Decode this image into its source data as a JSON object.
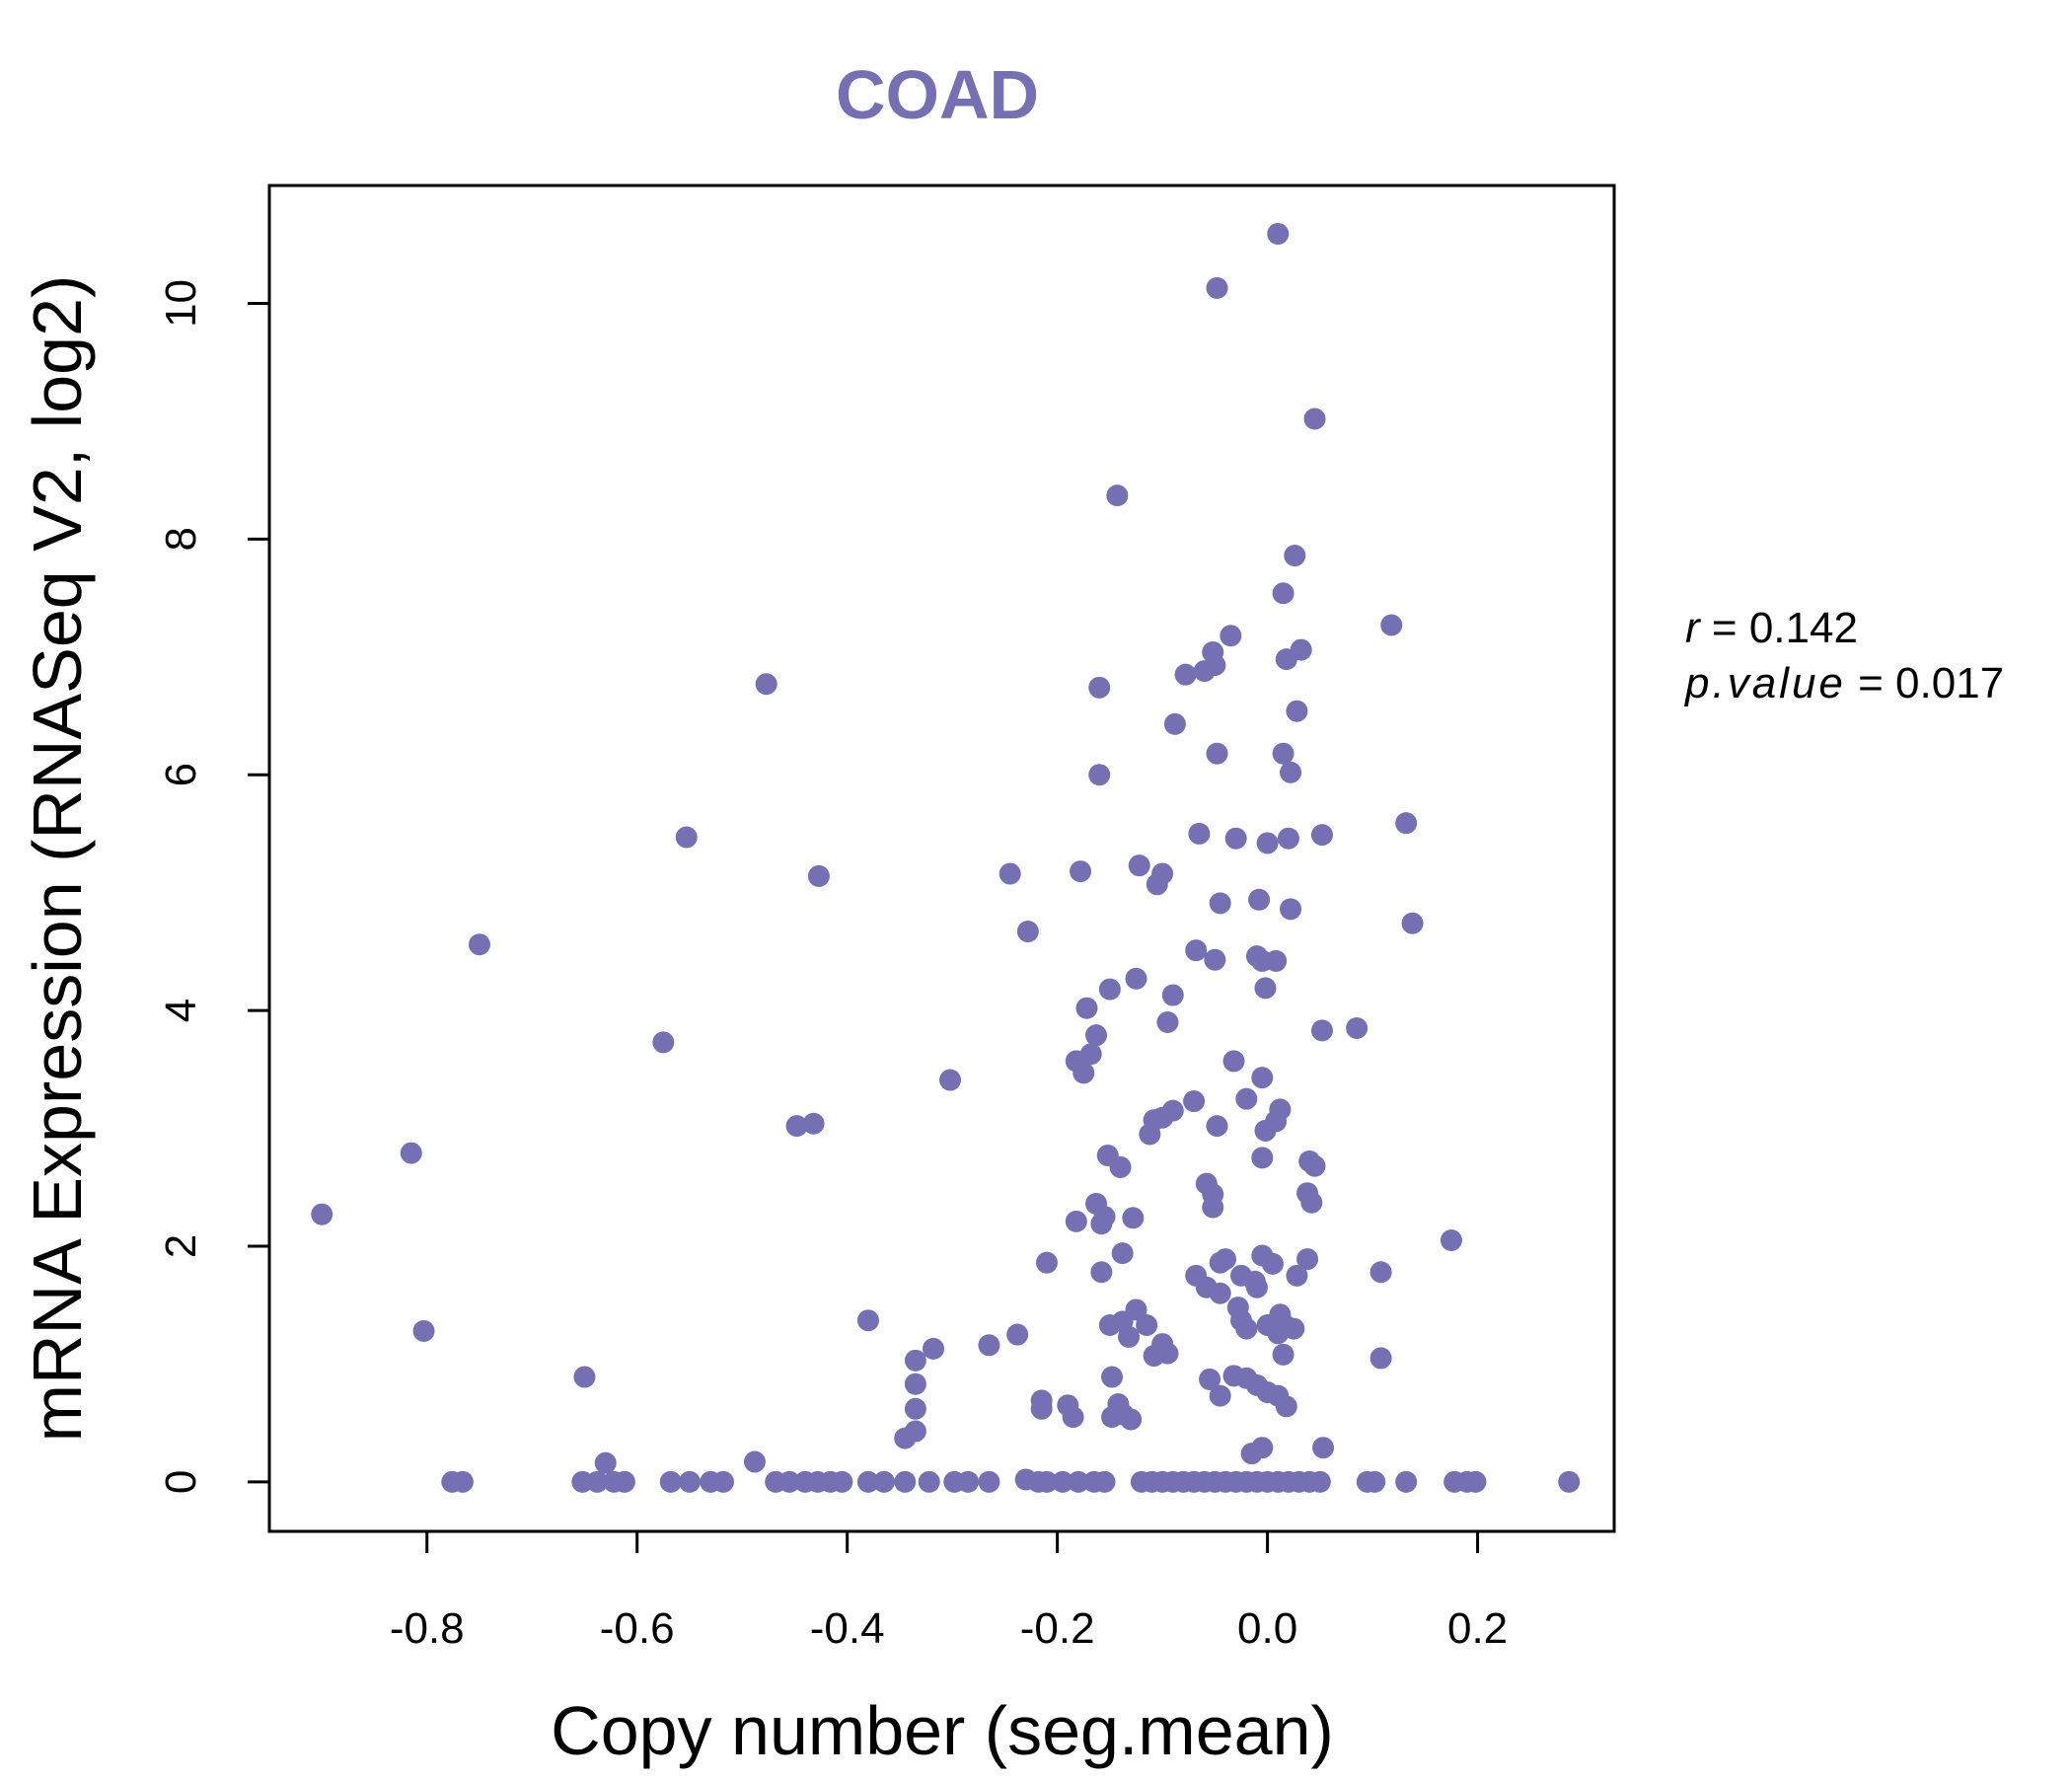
{
  "chart_data": {
    "type": "scatter",
    "title": "COAD",
    "xlabel": "Copy number (seg.mean)",
    "ylabel": "mRNA Expression (RNASeq V2, log2)",
    "xlim": [
      -0.95,
      0.33
    ],
    "ylim": [
      -0.42,
      11.0
    ],
    "x_ticks": [
      -0.8,
      -0.6,
      -0.4,
      -0.2,
      0.0,
      0.2
    ],
    "x_tick_labels": [
      "-0.8",
      "-0.6",
      "-0.4",
      "-0.2",
      "0.0",
      "0.2"
    ],
    "y_ticks": [
      0,
      2,
      4,
      6,
      8,
      10
    ],
    "y_tick_labels": [
      "0",
      "2",
      "4",
      "6",
      "8",
      "10"
    ],
    "grid": false,
    "point_color": "#7570b3",
    "annotation": {
      "r_label": "r",
      "r_value": "0.142",
      "p_label": "p.value",
      "p_value": "0.017"
    },
    "points": [
      [
        -0.9,
        2.27
      ],
      [
        -0.815,
        2.79
      ],
      [
        -0.803,
        1.28
      ],
      [
        -0.75,
        4.56
      ],
      [
        -0.776,
        0.0
      ],
      [
        -0.766,
        0.0
      ],
      [
        -0.65,
        0.89
      ],
      [
        -0.63,
        0.16
      ],
      [
        -0.652,
        0.0
      ],
      [
        -0.638,
        0.0
      ],
      [
        -0.622,
        0.0
      ],
      [
        -0.612,
        0.0
      ],
      [
        -0.575,
        3.73
      ],
      [
        -0.553,
        5.47
      ],
      [
        -0.568,
        0.0
      ],
      [
        -0.55,
        0.0
      ],
      [
        -0.53,
        0.0
      ],
      [
        -0.518,
        0.0
      ],
      [
        -0.477,
        6.77
      ],
      [
        -0.488,
        0.17
      ],
      [
        -0.468,
        0.0
      ],
      [
        -0.455,
        0.0
      ],
      [
        -0.44,
        0.0
      ],
      [
        -0.428,
        0.0
      ],
      [
        -0.416,
        0.0
      ],
      [
        -0.405,
        0.0
      ],
      [
        -0.448,
        3.02
      ],
      [
        -0.432,
        3.04
      ],
      [
        -0.427,
        5.14
      ],
      [
        -0.38,
        1.37
      ],
      [
        -0.38,
        0.0
      ],
      [
        -0.365,
        0.0
      ],
      [
        -0.345,
        0.0
      ],
      [
        -0.322,
        0.0
      ],
      [
        -0.298,
        0.0
      ],
      [
        -0.285,
        0.0
      ],
      [
        -0.265,
        0.0
      ],
      [
        -0.345,
        0.37
      ],
      [
        -0.335,
        0.43
      ],
      [
        -0.335,
        0.62
      ],
      [
        -0.335,
        0.83
      ],
      [
        -0.335,
        1.03
      ],
      [
        -0.318,
        1.13
      ],
      [
        -0.302,
        3.41
      ],
      [
        -0.265,
        1.16
      ],
      [
        -0.245,
        5.16
      ],
      [
        -0.238,
        1.25
      ],
      [
        -0.228,
        4.67
      ],
      [
        -0.23,
        0.02
      ],
      [
        -0.218,
        0.0
      ],
      [
        -0.21,
        0.0
      ],
      [
        -0.195,
        0.0
      ],
      [
        -0.18,
        0.0
      ],
      [
        -0.165,
        0.0
      ],
      [
        -0.155,
        0.0
      ],
      [
        -0.21,
        1.86
      ],
      [
        -0.215,
        0.62
      ],
      [
        -0.215,
        0.69
      ],
      [
        -0.19,
        0.65
      ],
      [
        -0.185,
        0.55
      ],
      [
        -0.178,
        5.18
      ],
      [
        -0.182,
        3.57
      ],
      [
        -0.175,
        3.47
      ],
      [
        -0.168,
        3.63
      ],
      [
        -0.163,
        3.79
      ],
      [
        -0.172,
        4.02
      ],
      [
        -0.15,
        4.18
      ],
      [
        -0.16,
        6.0
      ],
      [
        -0.16,
        6.74
      ],
      [
        -0.143,
        8.37
      ],
      [
        -0.182,
        2.21
      ],
      [
        -0.163,
        2.36
      ],
      [
        -0.158,
        2.19
      ],
      [
        -0.155,
        2.25
      ],
      [
        -0.152,
        2.77
      ],
      [
        -0.14,
        2.67
      ],
      [
        -0.158,
        1.78
      ],
      [
        -0.138,
        1.94
      ],
      [
        -0.128,
        2.24
      ],
      [
        -0.15,
        1.33
      ],
      [
        -0.138,
        1.36
      ],
      [
        -0.132,
        1.23
      ],
      [
        -0.125,
        1.46
      ],
      [
        -0.115,
        1.33
      ],
      [
        -0.108,
        1.07
      ],
      [
        -0.1,
        1.17
      ],
      [
        -0.095,
        1.09
      ],
      [
        -0.148,
        0.89
      ],
      [
        -0.142,
        0.66
      ],
      [
        -0.148,
        0.55
      ],
      [
        -0.137,
        0.57
      ],
      [
        -0.13,
        0.53
      ],
      [
        -0.122,
        5.23
      ],
      [
        -0.105,
        5.07
      ],
      [
        -0.1,
        5.16
      ],
      [
        -0.125,
        4.27
      ],
      [
        -0.09,
        4.13
      ],
      [
        -0.095,
        3.9
      ],
      [
        -0.068,
        4.51
      ],
      [
        -0.05,
        4.43
      ],
      [
        -0.108,
        3.07
      ],
      [
        -0.1,
        3.09
      ],
      [
        -0.09,
        3.15
      ],
      [
        -0.07,
        3.23
      ],
      [
        -0.112,
        2.95
      ],
      [
        -0.058,
        2.53
      ],
      [
        -0.052,
        2.44
      ],
      [
        -0.052,
        2.33
      ],
      [
        -0.048,
        3.02
      ],
      [
        -0.032,
        3.57
      ],
      [
        -0.078,
        6.85
      ],
      [
        -0.088,
        6.43
      ],
      [
        -0.06,
        6.88
      ],
      [
        -0.052,
        7.04
      ],
      [
        -0.05,
        6.93
      ],
      [
        -0.035,
        7.18
      ],
      [
        -0.048,
        6.18
      ],
      [
        -0.065,
        5.5
      ],
      [
        -0.03,
        5.46
      ],
      [
        -0.045,
        4.91
      ],
      [
        -0.048,
        10.13
      ],
      [
        -0.02,
        3.25
      ],
      [
        -0.01,
        4.46
      ],
      [
        -0.008,
        4.94
      ],
      [
        -0.005,
        4.42
      ],
      [
        0.008,
        4.42
      ],
      [
        -0.005,
        3.43
      ],
      [
        -0.002,
        4.19
      ],
      [
        0.0,
        5.42
      ],
      [
        0.02,
        5.46
      ],
      [
        0.022,
        4.86
      ],
      [
        0.015,
        6.18
      ],
      [
        0.022,
        6.02
      ],
      [
        0.028,
        6.54
      ],
      [
        0.015,
        7.54
      ],
      [
        0.018,
        6.98
      ],
      [
        0.032,
        7.06
      ],
      [
        0.026,
        7.86
      ],
      [
        0.045,
        9.02
      ],
      [
        0.01,
        10.59
      ],
      [
        0.052,
        5.49
      ],
      [
        0.052,
        3.83
      ],
      [
        -0.068,
        1.75
      ],
      [
        -0.058,
        1.65
      ],
      [
        -0.045,
        1.86
      ],
      [
        -0.045,
        1.6
      ],
      [
        -0.04,
        1.89
      ],
      [
        -0.025,
        1.75
      ],
      [
        -0.028,
        1.48
      ],
      [
        -0.025,
        1.37
      ],
      [
        -0.02,
        1.3
      ],
      [
        -0.012,
        1.7
      ],
      [
        -0.01,
        1.65
      ],
      [
        -0.005,
        1.92
      ],
      [
        0.005,
        1.85
      ],
      [
        0.0,
        1.33
      ],
      [
        0.01,
        1.26
      ],
      [
        0.012,
        1.42
      ],
      [
        0.018,
        1.32
      ],
      [
        0.025,
        1.3
      ],
      [
        0.028,
        1.75
      ],
      [
        0.038,
        1.89
      ],
      [
        0.038,
        2.45
      ],
      [
        0.042,
        2.37
      ],
      [
        0.04,
        2.72
      ],
      [
        0.045,
        2.68
      ],
      [
        -0.002,
        2.98
      ],
      [
        0.008,
        3.06
      ],
      [
        0.012,
        3.16
      ],
      [
        -0.005,
        2.75
      ],
      [
        0.015,
        1.08
      ],
      [
        -0.055,
        0.87
      ],
      [
        -0.032,
        0.9
      ],
      [
        -0.02,
        0.88
      ],
      [
        -0.01,
        0.82
      ],
      [
        0.0,
        0.76
      ],
      [
        0.01,
        0.73
      ],
      [
        -0.045,
        0.73
      ],
      [
        0.018,
        0.64
      ],
      [
        -0.015,
        0.24
      ],
      [
        -0.005,
        0.29
      ],
      [
        0.053,
        0.29
      ],
      [
        -0.12,
        0.0
      ],
      [
        -0.11,
        0.0
      ],
      [
        -0.1,
        0.0
      ],
      [
        -0.09,
        0.0
      ],
      [
        -0.08,
        0.0
      ],
      [
        -0.07,
        0.0
      ],
      [
        -0.06,
        0.0
      ],
      [
        -0.05,
        0.0
      ],
      [
        -0.04,
        0.0
      ],
      [
        -0.03,
        0.0
      ],
      [
        -0.02,
        0.0
      ],
      [
        -0.01,
        0.0
      ],
      [
        0.0,
        0.0
      ],
      [
        0.01,
        0.0
      ],
      [
        0.02,
        0.0
      ],
      [
        0.03,
        0.0
      ],
      [
        0.04,
        0.0
      ],
      [
        0.05,
        0.0
      ],
      [
        0.085,
        3.85
      ],
      [
        0.108,
        1.78
      ],
      [
        0.108,
        1.05
      ],
      [
        0.118,
        7.27
      ],
      [
        0.132,
        5.59
      ],
      [
        0.138,
        4.74
      ],
      [
        0.175,
        2.05
      ],
      [
        0.095,
        0.0
      ],
      [
        0.102,
        0.0
      ],
      [
        0.132,
        0.0
      ],
      [
        0.178,
        0.0
      ],
      [
        0.19,
        0.0
      ],
      [
        0.198,
        0.0
      ],
      [
        0.287,
        0.0
      ]
    ]
  }
}
